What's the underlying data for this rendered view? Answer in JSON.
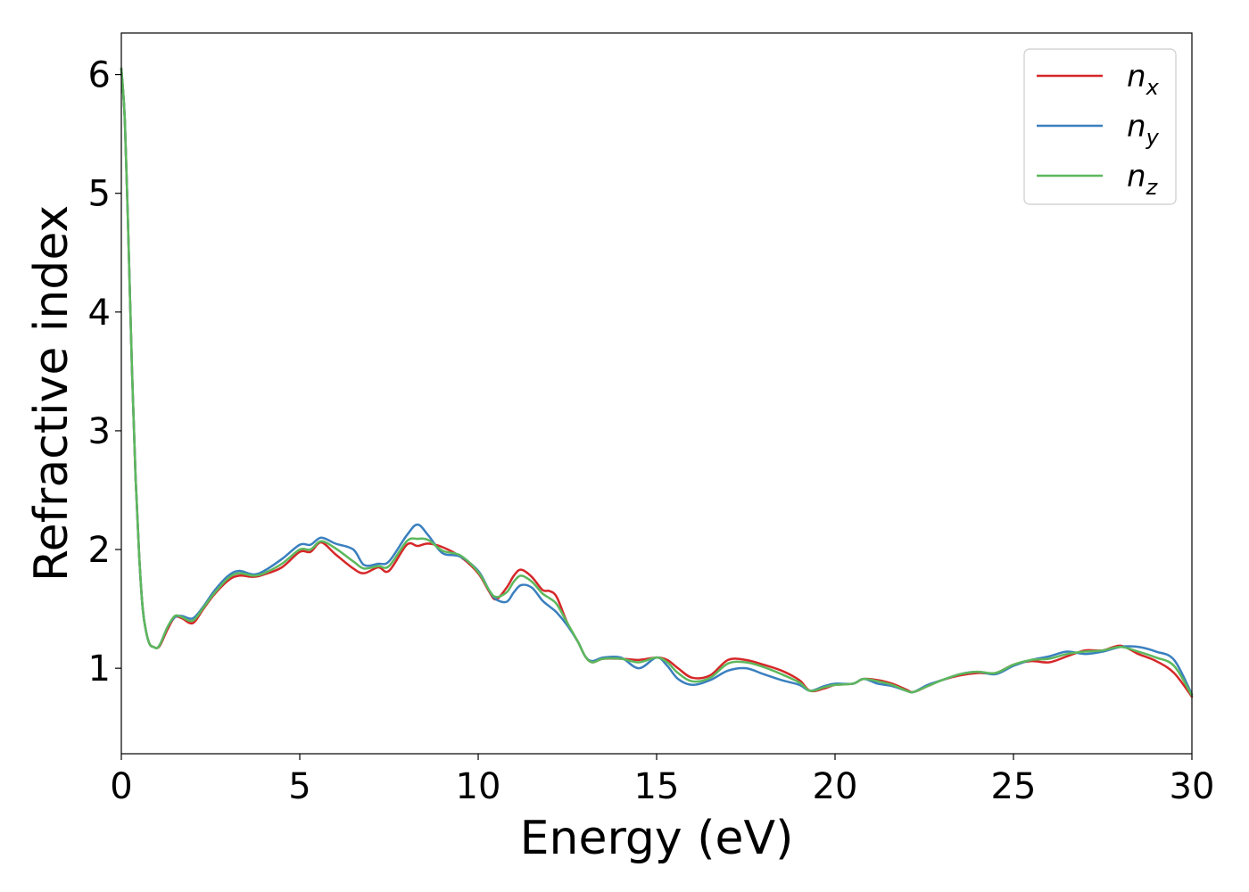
{
  "chart_data": {
    "type": "line",
    "xlabel": "Energy (eV)",
    "ylabel": "Refractive index",
    "xlim": [
      0,
      30
    ],
    "ylim": [
      0.28,
      6.35
    ],
    "xticks": [
      0,
      5,
      10,
      15,
      20,
      25,
      30
    ],
    "yticks": [
      1,
      2,
      3,
      4,
      5,
      6
    ],
    "grid": false,
    "legend_position": "top-right",
    "series": [
      {
        "name": "n_x",
        "label_base": "n",
        "label_sub": "x",
        "color": "#d62728",
        "x": [
          0,
          0.1,
          0.2,
          0.3,
          0.4,
          0.5,
          0.6,
          0.7,
          0.8,
          0.9,
          1.0,
          1.1,
          1.3,
          1.5,
          1.7,
          2.0,
          2.3,
          2.6,
          3.0,
          3.3,
          3.7,
          4.0,
          4.5,
          5.0,
          5.3,
          5.6,
          6.0,
          6.5,
          6.8,
          7.2,
          7.5,
          8.0,
          8.3,
          8.6,
          9.0,
          9.5,
          10.0,
          10.3,
          10.5,
          10.8,
          11.0,
          11.2,
          11.5,
          11.8,
          12.0,
          12.2,
          12.5,
          12.8,
          13.0,
          13.2,
          13.5,
          14.0,
          14.5,
          15.0,
          15.3,
          15.6,
          16.0,
          16.5,
          17.0,
          17.5,
          18.0,
          18.5,
          19.0,
          19.3,
          19.7,
          20.0,
          20.5,
          20.8,
          21.2,
          21.6,
          22.0,
          22.2,
          22.6,
          23.0,
          23.5,
          24.0,
          24.5,
          25.0,
          25.5,
          26.0,
          26.5,
          27.0,
          27.5,
          28.0,
          28.5,
          29.0,
          29.5,
          30.0
        ],
        "values": [
          6.05,
          5.6,
          4.6,
          3.5,
          2.6,
          1.95,
          1.5,
          1.3,
          1.2,
          1.18,
          1.17,
          1.2,
          1.33,
          1.43,
          1.42,
          1.38,
          1.5,
          1.62,
          1.74,
          1.78,
          1.77,
          1.79,
          1.85,
          1.98,
          1.98,
          2.06,
          1.96,
          1.84,
          1.8,
          1.85,
          1.82,
          2.04,
          2.03,
          2.05,
          2.02,
          1.94,
          1.8,
          1.65,
          1.58,
          1.68,
          1.78,
          1.83,
          1.77,
          1.66,
          1.65,
          1.6,
          1.38,
          1.22,
          1.1,
          1.05,
          1.08,
          1.08,
          1.07,
          1.09,
          1.07,
          1.0,
          0.92,
          0.94,
          1.07,
          1.07,
          1.03,
          0.98,
          0.9,
          0.81,
          0.83,
          0.86,
          0.87,
          0.91,
          0.9,
          0.87,
          0.82,
          0.8,
          0.85,
          0.9,
          0.94,
          0.96,
          0.96,
          1.03,
          1.06,
          1.05,
          1.1,
          1.15,
          1.15,
          1.19,
          1.12,
          1.06,
          0.96,
          0.76
        ]
      },
      {
        "name": "n_y",
        "label_base": "n",
        "label_sub": "y",
        "color": "#3a7fbf",
        "x": [
          0,
          0.1,
          0.2,
          0.3,
          0.4,
          0.5,
          0.6,
          0.7,
          0.8,
          0.9,
          1.0,
          1.1,
          1.3,
          1.5,
          1.7,
          2.0,
          2.3,
          2.6,
          3.0,
          3.3,
          3.7,
          4.0,
          4.5,
          5.0,
          5.3,
          5.6,
          6.0,
          6.5,
          6.8,
          7.2,
          7.5,
          8.0,
          8.3,
          8.6,
          9.0,
          9.5,
          10.0,
          10.3,
          10.5,
          10.8,
          11.0,
          11.2,
          11.5,
          11.8,
          12.0,
          12.2,
          12.5,
          12.8,
          13.0,
          13.2,
          13.5,
          14.0,
          14.5,
          15.0,
          15.3,
          15.6,
          16.0,
          16.5,
          17.0,
          17.5,
          18.0,
          18.5,
          19.0,
          19.3,
          19.7,
          20.0,
          20.5,
          20.8,
          21.2,
          21.6,
          22.0,
          22.2,
          22.6,
          23.0,
          23.5,
          24.0,
          24.5,
          25.0,
          25.5,
          26.0,
          26.5,
          27.0,
          27.5,
          28.0,
          28.5,
          29.0,
          29.5,
          30.0
        ],
        "values": [
          6.05,
          5.6,
          4.6,
          3.5,
          2.6,
          1.95,
          1.5,
          1.3,
          1.2,
          1.18,
          1.17,
          1.21,
          1.35,
          1.43,
          1.44,
          1.42,
          1.52,
          1.65,
          1.78,
          1.82,
          1.79,
          1.82,
          1.92,
          2.04,
          2.04,
          2.1,
          2.05,
          2.0,
          1.87,
          1.88,
          1.9,
          2.12,
          2.21,
          2.12,
          1.97,
          1.94,
          1.82,
          1.66,
          1.58,
          1.56,
          1.64,
          1.7,
          1.68,
          1.57,
          1.52,
          1.47,
          1.36,
          1.22,
          1.1,
          1.06,
          1.09,
          1.09,
          1.0,
          1.09,
          1.02,
          0.91,
          0.86,
          0.9,
          0.98,
          1.0,
          0.95,
          0.9,
          0.86,
          0.81,
          0.85,
          0.87,
          0.87,
          0.91,
          0.87,
          0.85,
          0.81,
          0.8,
          0.86,
          0.9,
          0.95,
          0.97,
          0.95,
          1.02,
          1.07,
          1.1,
          1.14,
          1.12,
          1.14,
          1.18,
          1.18,
          1.14,
          1.07,
          0.78
        ]
      },
      {
        "name": "n_z",
        "label_base": "n",
        "label_sub": "z",
        "color": "#5cb85c",
        "x": [
          0,
          0.1,
          0.2,
          0.3,
          0.4,
          0.5,
          0.6,
          0.7,
          0.8,
          0.9,
          1.0,
          1.1,
          1.3,
          1.5,
          1.7,
          2.0,
          2.3,
          2.6,
          3.0,
          3.3,
          3.7,
          4.0,
          4.5,
          5.0,
          5.3,
          5.6,
          6.0,
          6.5,
          6.8,
          7.2,
          7.5,
          8.0,
          8.3,
          8.6,
          9.0,
          9.5,
          10.0,
          10.3,
          10.5,
          10.8,
          11.0,
          11.2,
          11.5,
          11.8,
          12.0,
          12.2,
          12.5,
          12.8,
          13.0,
          13.2,
          13.5,
          14.0,
          14.5,
          15.0,
          15.3,
          15.6,
          16.0,
          16.5,
          17.0,
          17.5,
          18.0,
          18.5,
          19.0,
          19.3,
          19.7,
          20.0,
          20.5,
          20.8,
          21.2,
          21.6,
          22.0,
          22.2,
          22.6,
          23.0,
          23.5,
          24.0,
          24.5,
          25.0,
          25.5,
          26.0,
          26.5,
          27.0,
          27.5,
          28.0,
          28.5,
          29.0,
          29.5,
          30.0
        ],
        "values": [
          6.05,
          5.6,
          4.6,
          3.5,
          2.6,
          1.95,
          1.5,
          1.3,
          1.2,
          1.18,
          1.17,
          1.21,
          1.35,
          1.44,
          1.43,
          1.4,
          1.51,
          1.63,
          1.76,
          1.8,
          1.78,
          1.8,
          1.88,
          2.0,
          2.0,
          2.07,
          2.01,
          1.9,
          1.84,
          1.86,
          1.86,
          2.07,
          2.09,
          2.08,
          1.99,
          1.95,
          1.81,
          1.66,
          1.6,
          1.64,
          1.73,
          1.78,
          1.73,
          1.63,
          1.59,
          1.54,
          1.38,
          1.22,
          1.1,
          1.05,
          1.08,
          1.08,
          1.05,
          1.09,
          1.05,
          0.96,
          0.89,
          0.92,
          1.04,
          1.05,
          1.01,
          0.95,
          0.88,
          0.81,
          0.84,
          0.86,
          0.87,
          0.91,
          0.89,
          0.86,
          0.81,
          0.8,
          0.85,
          0.9,
          0.95,
          0.97,
          0.96,
          1.03,
          1.07,
          1.08,
          1.12,
          1.14,
          1.15,
          1.18,
          1.14,
          1.09,
          1.02,
          0.77
        ]
      }
    ]
  }
}
